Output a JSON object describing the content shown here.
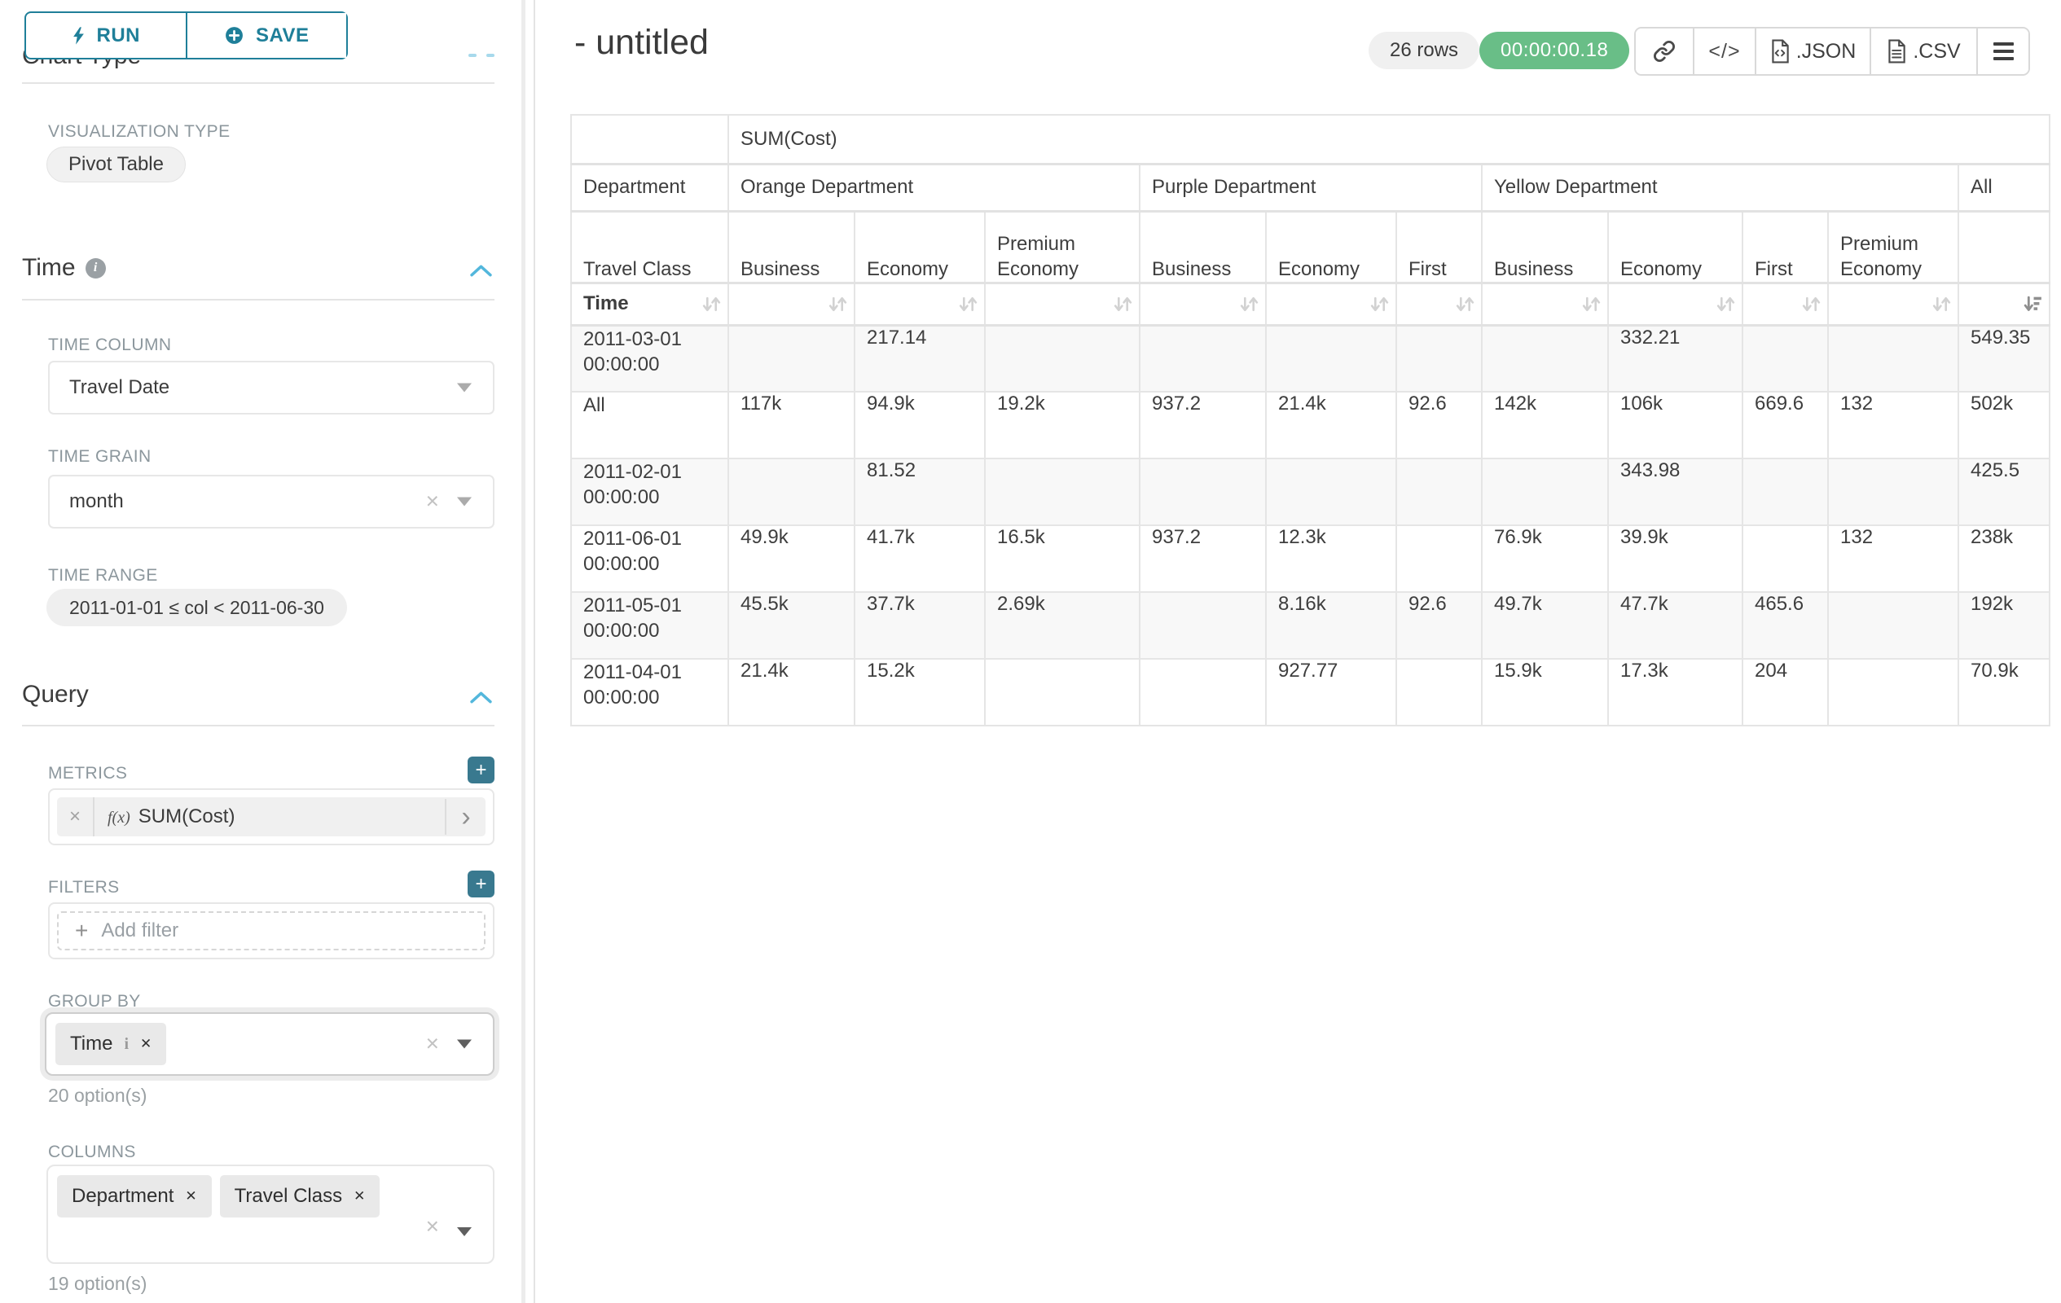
{
  "sidebar": {
    "run_button": "RUN",
    "save_button": "SAVE",
    "scrolled_section_title": "Chart Type",
    "viz_type_label": "VISUALIZATION TYPE",
    "viz_type_value": "Pivot Table",
    "time": {
      "section_title": "Time",
      "time_column_label": "TIME COLUMN",
      "time_column_value": "Travel Date",
      "time_grain_label": "TIME GRAIN",
      "time_grain_value": "month",
      "time_range_label": "TIME RANGE",
      "time_range_value": "2011-01-01 ≤ col < 2011-06-30"
    },
    "query": {
      "section_title": "Query",
      "metrics_label": "METRICS",
      "metric_name": "SUM(Cost)",
      "filters_label": "FILTERS",
      "add_filter_placeholder": "Add filter",
      "group_by_label": "GROUP BY",
      "group_by_tag": "Time",
      "group_by_hint": "20 option(s)",
      "columns_label": "COLUMNS",
      "columns_tags": [
        "Department",
        "Travel Class"
      ],
      "columns_hint": "19 option(s)"
    }
  },
  "main": {
    "title": "- untitled",
    "row_count_badge": "26 rows",
    "timer_badge": "00:00:00.18",
    "export_json_label": ".JSON",
    "export_csv_label": ".CSV"
  },
  "icons": {
    "code": "</>",
    "fx": "f(x)",
    "plus": "+",
    "clear": "×",
    "remove": "✕",
    "info": "i",
    "chevron_right": "›"
  },
  "colors": {
    "accent_teal": "#1f7f99",
    "timer_green": "#69be87",
    "chevron_blue": "#53b7dc"
  },
  "chart_data": {
    "type": "table",
    "metric": "SUM(Cost)",
    "row_header": "Department",
    "sub_row_header": "Travel Class",
    "time_header": "Time",
    "sorted_column": "All",
    "sort_direction": "descending",
    "column_groups": [
      {
        "name": "Orange Department",
        "classes": [
          "Business",
          "Economy",
          "Premium Economy"
        ]
      },
      {
        "name": "Purple Department",
        "classes": [
          "Business",
          "Economy",
          "First"
        ]
      },
      {
        "name": "Yellow Department",
        "classes": [
          "Business",
          "Economy",
          "First",
          "Premium Economy"
        ]
      },
      {
        "name": "All",
        "classes": [
          ""
        ]
      }
    ],
    "rows": [
      {
        "time": "2011-03-01 00:00:00",
        "values": [
          "",
          "217.14",
          "",
          "",
          "",
          "",
          "",
          "332.21",
          "",
          "",
          "549.35"
        ]
      },
      {
        "time": "All",
        "values": [
          "117k",
          "94.9k",
          "19.2k",
          "937.2",
          "21.4k",
          "92.6",
          "142k",
          "106k",
          "669.6",
          "132",
          "502k"
        ]
      },
      {
        "time": "2011-02-01 00:00:00",
        "values": [
          "",
          "81.52",
          "",
          "",
          "",
          "",
          "",
          "343.98",
          "",
          "",
          "425.5"
        ]
      },
      {
        "time": "2011-06-01 00:00:00",
        "values": [
          "49.9k",
          "41.7k",
          "16.5k",
          "937.2",
          "12.3k",
          "",
          "76.9k",
          "39.9k",
          "",
          "132",
          "238k"
        ]
      },
      {
        "time": "2011-05-01 00:00:00",
        "values": [
          "45.5k",
          "37.7k",
          "2.69k",
          "",
          "8.16k",
          "92.6",
          "49.7k",
          "47.7k",
          "465.6",
          "",
          "192k"
        ]
      },
      {
        "time": "2011-04-01 00:00:00",
        "values": [
          "21.4k",
          "15.2k",
          "",
          "",
          "927.77",
          "",
          "15.9k",
          "17.3k",
          "204",
          "",
          "70.9k"
        ]
      }
    ]
  }
}
